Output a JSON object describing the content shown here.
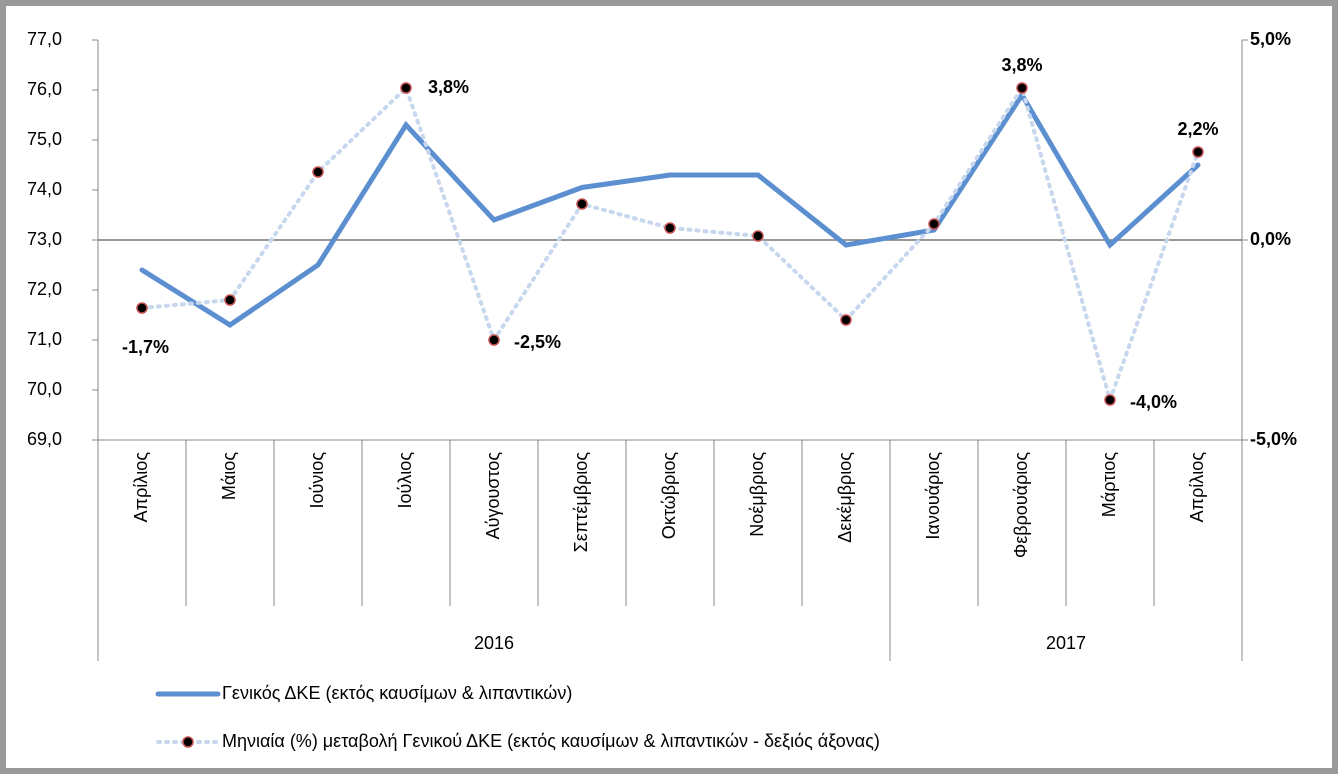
{
  "chart_data": {
    "type": "line",
    "categories": [
      "Απρίλιος",
      "Μάιος",
      "Ιούνιος",
      "Ιούλιος",
      "Αύγουστος",
      "Σεπτέμβριος",
      "Οκτώβριος",
      "Νοέμβριος",
      "Δεκέμβριος",
      "Ιανουάριος",
      "Φεβρουάριος",
      "Μάρτιος",
      "Απρίλιος"
    ],
    "groups": [
      {
        "label": "2016",
        "count": 9
      },
      {
        "label": "2017",
        "count": 4
      }
    ],
    "series": [
      {
        "name": "Γενικός ΔΚΕ (εκτός καυσίμων & λιπαντικών)",
        "color": "#5b8fd0",
        "style": "solid",
        "values": [
          72.4,
          71.3,
          72.5,
          75.3,
          73.4,
          74.05,
          74.3,
          74.3,
          72.9,
          73.2,
          75.9,
          72.9,
          74.5
        ]
      },
      {
        "name": "Μηνιαία (%) μεταβολή Γενικού ΔΚΕ (εκτός καυσίμων & λιπαντικών - δεξιός άξονας)",
        "color": "#c6d7ee",
        "style": "dotted",
        "axis": "y2",
        "values": [
          -1.7,
          -1.5,
          1.7,
          3.8,
          -2.5,
          0.9,
          0.3,
          0.1,
          -2.0,
          0.4,
          3.8,
          -4.0,
          2.2
        ],
        "value_labels": [
          "-1,7%",
          null,
          null,
          "3,8%",
          "-2,5%",
          null,
          null,
          null,
          null,
          null,
          "3,8%",
          "-4,0%",
          "2,2%"
        ]
      }
    ],
    "ylim": [
      69,
      77
    ],
    "yticks": [
      {
        "value": 69,
        "label": "69,0"
      },
      {
        "value": 70,
        "label": "70,0"
      },
      {
        "value": 71,
        "label": "71,0"
      },
      {
        "value": 72,
        "label": "72,0"
      },
      {
        "value": 73,
        "label": "73,0"
      },
      {
        "value": 74,
        "label": "74,0"
      },
      {
        "value": 75,
        "label": "75,0"
      },
      {
        "value": 76,
        "label": "76,0"
      },
      {
        "value": 77,
        "label": "77,0"
      }
    ],
    "y2lim": [
      -5,
      5
    ],
    "y2ticks": [
      {
        "value": -5,
        "label": "-5,0%"
      },
      {
        "value": 0,
        "label": "0,0%"
      },
      {
        "value": 5,
        "label": "5,0%"
      }
    ],
    "legend": "bottom"
  }
}
